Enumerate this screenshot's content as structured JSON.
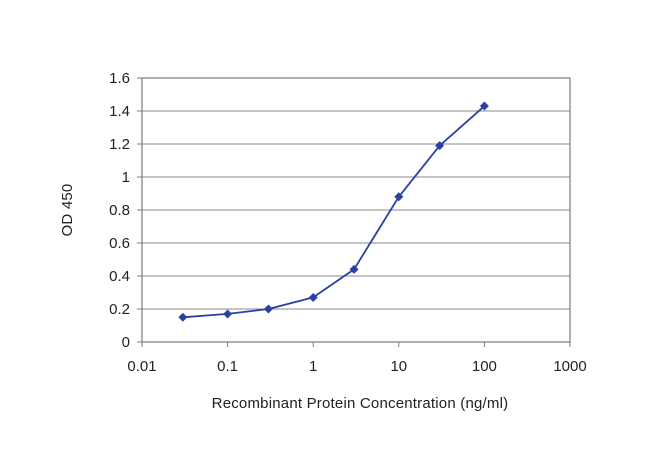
{
  "chart_data": {
    "type": "line",
    "title": "",
    "xlabel": "Recombinant Protein Concentration (ng/ml)",
    "ylabel": "OD 450",
    "x_scale": "log",
    "xlim": [
      0.01,
      1000
    ],
    "ylim": [
      0,
      1.6
    ],
    "x_ticks": [
      0.01,
      0.1,
      1,
      10,
      100,
      1000
    ],
    "x_tick_labels": [
      "0.01",
      "0.1",
      "1",
      "10",
      "100",
      "1000"
    ],
    "y_ticks": [
      0,
      0.2,
      0.4,
      0.6,
      0.8,
      1,
      1.2,
      1.4,
      1.6
    ],
    "y_tick_labels": [
      "0",
      "0.2",
      "0.4",
      "0.6",
      "0.8",
      "1",
      "1.2",
      "1.4",
      "1.6"
    ],
    "grid": "horizontal",
    "legend": "none",
    "series": [
      {
        "x": [
          0.03,
          0.1,
          0.3,
          1,
          3,
          10,
          30,
          100
        ],
        "y": [
          0.15,
          0.17,
          0.2,
          0.27,
          0.44,
          0.88,
          1.19,
          1.43
        ],
        "color": "#2b3fa8",
        "marker": "diamond"
      }
    ]
  }
}
